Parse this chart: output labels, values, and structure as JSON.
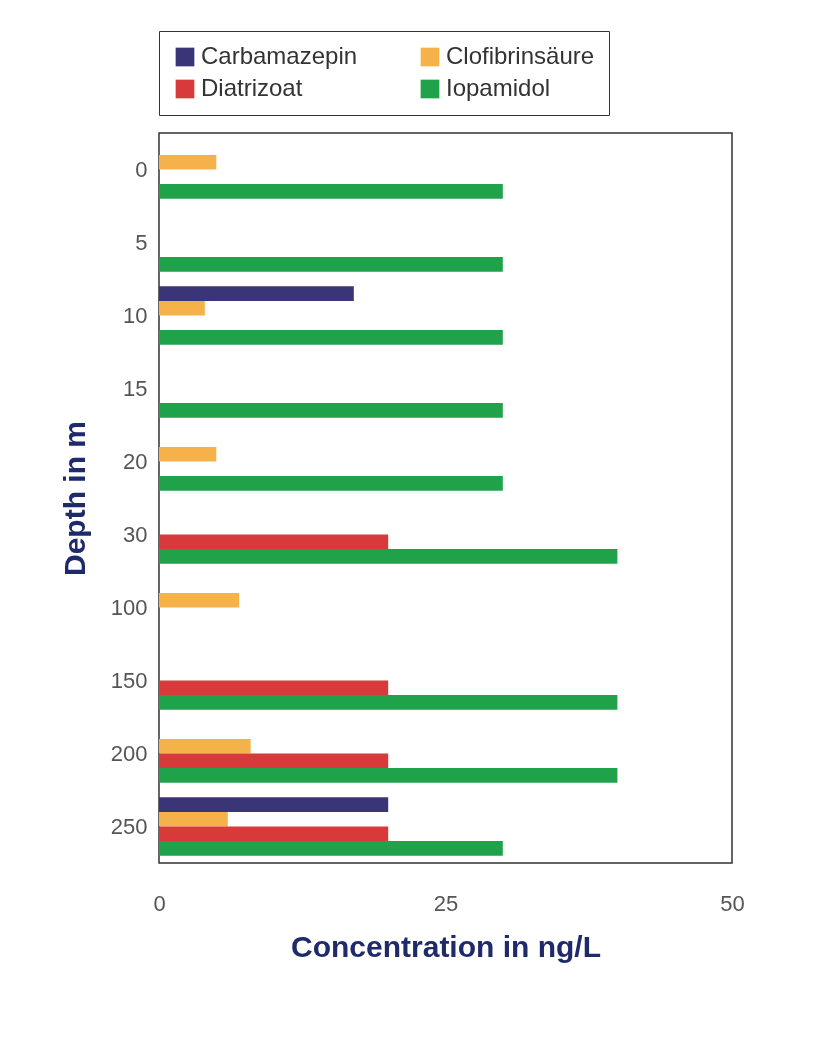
{
  "chart_data": {
    "type": "bar",
    "orientation": "horizontal",
    "xlabel": "Concentration in ng/L",
    "ylabel": "Depth in m",
    "categories": [
      "0",
      "5",
      "10",
      "15",
      "20",
      "30",
      "100",
      "150",
      "200",
      "250"
    ],
    "series": [
      {
        "name": "Carbamazepin",
        "color": "#3a3577",
        "values": [
          null,
          null,
          17,
          null,
          null,
          null,
          null,
          null,
          null,
          20
        ]
      },
      {
        "name": "Clofibrinsäure",
        "color": "#f5b24a",
        "values": [
          5,
          null,
          4,
          null,
          5,
          null,
          7,
          null,
          8,
          6
        ]
      },
      {
        "name": "Diatrizoat",
        "color": "#d8393a",
        "values": [
          null,
          null,
          null,
          null,
          null,
          20,
          null,
          20,
          20,
          20
        ]
      },
      {
        "name": "Iopamidol",
        "color": "#1fa24a",
        "values": [
          30,
          30,
          30,
          30,
          30,
          40,
          null,
          40,
          40,
          30
        ]
      }
    ],
    "xlim": [
      0,
      50
    ],
    "xticks": [
      0,
      25,
      50
    ],
    "legend": "top"
  }
}
